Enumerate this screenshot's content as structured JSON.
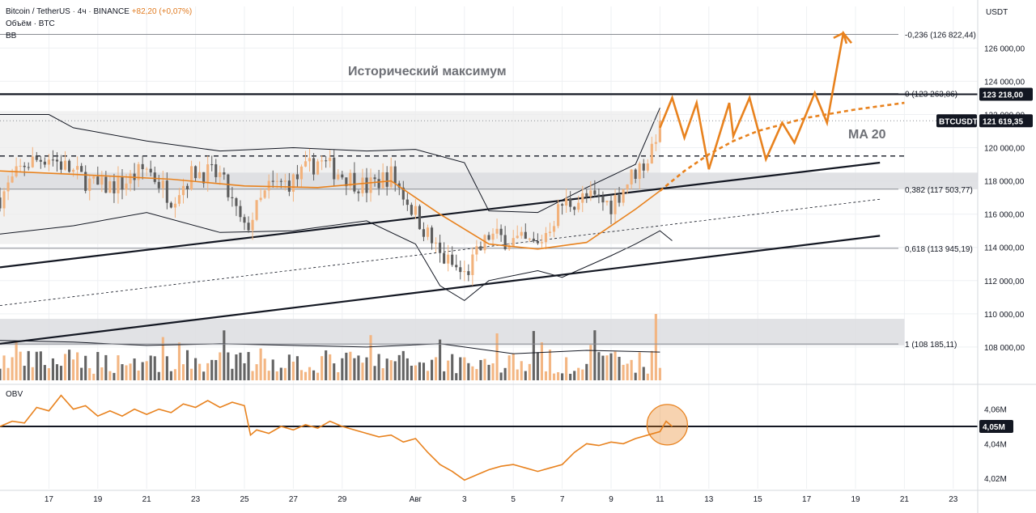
{
  "header": {
    "symbol": "Bitcoin / TetherUS",
    "interval": "4ч",
    "exchange": "BINANCE",
    "change": "+82,20 (+0,07%)",
    "volume_label": "Объём · BTC",
    "bb_label": "BB",
    "currency": "USDT",
    "separator": "·"
  },
  "colors": {
    "bull": "#f2b27c",
    "bear": "#5c5c5c",
    "annotation": "#e8821e",
    "line": "#131722",
    "grid": "#eef0f3",
    "band_fill": "#e6e6e6"
  },
  "chart_data": [
    {
      "type": "candlestick",
      "panel": "price",
      "title": "Bitcoin / TetherUS · 4ч · BINANCE",
      "ylim": [
        106000,
        128500
      ],
      "y_ticks": [
        "126 000,00",
        "124 000,00",
        "122 000,00",
        "120 000,00",
        "118 000,00",
        "116 000,00",
        "114 000,00",
        "112 000,00",
        "110 000,00",
        "108 000,00"
      ],
      "y_tick_values": [
        126000,
        124000,
        122000,
        120000,
        118000,
        116000,
        114000,
        112000,
        110000,
        108000
      ],
      "x_ticks": [
        "17",
        "19",
        "21",
        "23",
        "25",
        "27",
        "29",
        "Авг",
        "3",
        "5",
        "7",
        "9",
        "11",
        "13",
        "15",
        "17",
        "19",
        "21",
        "23"
      ],
      "x_tick_dates": [
        "2025-07-17",
        "2025-07-19",
        "2025-07-21",
        "2025-07-23",
        "2025-07-25",
        "2025-07-27",
        "2025-07-29",
        "2025-08-01",
        "2025-08-03",
        "2025-08-05",
        "2025-08-07",
        "2025-08-09",
        "2025-08-11",
        "2025-08-13",
        "2025-08-15",
        "2025-08-17",
        "2025-08-19",
        "2025-08-21",
        "2025-08-23"
      ],
      "x_start": "2025-07-15",
      "x_end": "2025-08-24",
      "candle_anchors": [
        [
          "2025-07-15",
          117000
        ],
        [
          "2025-07-16",
          119000
        ],
        [
          "2025-07-17",
          119500
        ],
        [
          "2025-07-18",
          118500
        ],
        [
          "2025-07-19",
          117600
        ],
        [
          "2025-07-20",
          117800
        ],
        [
          "2025-07-21",
          118800
        ],
        [
          "2025-07-22",
          117000
        ],
        [
          "2025-07-23",
          118600
        ],
        [
          "2025-07-24",
          118300
        ],
        [
          "2025-07-25",
          115000
        ],
        [
          "2025-07-26",
          117600
        ],
        [
          "2025-07-27",
          118000
        ],
        [
          "2025-07-28",
          119200
        ],
        [
          "2025-07-29",
          118400
        ],
        [
          "2025-07-30",
          117600
        ],
        [
          "2025-07-31",
          118400
        ],
        [
          "2025-08-01",
          116000
        ],
        [
          "2025-08-02",
          113500
        ],
        [
          "2025-08-03",
          112300
        ],
        [
          "2025-08-04",
          114700
        ],
        [
          "2025-08-05",
          114400
        ],
        [
          "2025-08-06",
          114100
        ],
        [
          "2025-08-07",
          116600
        ],
        [
          "2025-08-08",
          117000
        ],
        [
          "2025-08-09",
          116600
        ],
        [
          "2025-08-10",
          118600
        ],
        [
          "2025-08-10T12:00",
          119300
        ],
        [
          "2025-08-11",
          121620
        ]
      ],
      "last_price": 121619.35,
      "last_price_label": "121 619,35",
      "symbol_tag": "BTCUSDT",
      "ath_value": 123218.0,
      "ath_label": "123 218,00",
      "ath_title": "Исторический максимум",
      "ma_label": "MA 20",
      "fib_levels": [
        {
          "label": "-0,236 (126 822,44)",
          "value": 126822.44
        },
        {
          "label": "0 (123 263,86)",
          "value": 123263.86
        },
        {
          "label": "0,382 (117 503,77)",
          "value": 117503.77
        },
        {
          "label": "0,618 (113 945,19)",
          "value": 113945.19
        },
        {
          "label": "1 (108 185,11)",
          "value": 108185.11
        }
      ],
      "dashed_level": 119500,
      "ma20": [
        [
          "2025-07-15",
          118600
        ],
        [
          "2025-07-18",
          118400
        ],
        [
          "2025-07-22",
          118100
        ],
        [
          "2025-07-25",
          117700
        ],
        [
          "2025-07-28",
          117600
        ],
        [
          "2025-07-31",
          118000
        ],
        [
          "2025-08-02",
          116000
        ],
        [
          "2025-08-04",
          114200
        ],
        [
          "2025-08-06",
          113900
        ],
        [
          "2025-08-08",
          114300
        ],
        [
          "2025-08-10",
          116300
        ],
        [
          "2025-08-11",
          117400
        ]
      ],
      "bb_upper": [
        [
          "2025-07-15",
          122000
        ],
        [
          "2025-07-17",
          122000
        ],
        [
          "2025-07-18",
          121200
        ],
        [
          "2025-07-21",
          120400
        ],
        [
          "2025-07-24",
          119800
        ],
        [
          "2025-07-27",
          120000
        ],
        [
          "2025-07-30",
          119800
        ],
        [
          "2025-08-01",
          119900
        ],
        [
          "2025-08-03",
          119100
        ],
        [
          "2025-08-04",
          116200
        ],
        [
          "2025-08-06",
          116100
        ],
        [
          "2025-08-08",
          117600
        ],
        [
          "2025-08-10",
          119000
        ],
        [
          "2025-08-11",
          122400
        ]
      ],
      "bb_lower": [
        [
          "2025-07-15",
          114800
        ],
        [
          "2025-07-18",
          115300
        ],
        [
          "2025-07-21",
          116100
        ],
        [
          "2025-07-24",
          114900
        ],
        [
          "2025-07-27",
          115000
        ],
        [
          "2025-07-30",
          115600
        ],
        [
          "2025-08-01",
          114200
        ],
        [
          "2025-08-02",
          111700
        ],
        [
          "2025-08-03",
          110800
        ],
        [
          "2025-08-04",
          112000
        ],
        [
          "2025-08-06",
          112600
        ],
        [
          "2025-08-07",
          112200
        ],
        [
          "2025-08-09",
          113500
        ],
        [
          "2025-08-10",
          114200
        ],
        [
          "2025-08-11",
          115000
        ],
        [
          "2025-08-11T12:00",
          114400
        ]
      ],
      "grey_zone": {
        "from": "2025-07-15",
        "to": "2025-08-11",
        "y_low": 114200,
        "y_high": 122200
      },
      "resistance_band": {
        "from": "2025-07-15",
        "to": "2025-08-24",
        "y_low": 117500,
        "y_high": 118500
      },
      "volume_zone": {
        "from": "2025-07-15",
        "to": "2025-08-21",
        "y_low": 108100,
        "y_high": 109700
      },
      "channel_upper": [
        [
          "2025-07-15",
          112800
        ],
        [
          "2025-08-20",
          119100
        ]
      ],
      "channel_lower": [
        [
          "2025-07-15",
          108200
        ],
        [
          "2025-08-20",
          114700
        ]
      ],
      "channel_mid": [
        [
          "2025-07-15",
          110500
        ],
        [
          "2025-08-20",
          116900
        ]
      ],
      "projection_zigzag": [
        [
          "2025-08-11",
          121200
        ],
        [
          "2025-08-11T12:00",
          123000
        ],
        [
          "2025-08-12",
          120600
        ],
        [
          "2025-08-12T12:00",
          122700
        ],
        [
          "2025-08-13",
          118700
        ],
        [
          "2025-08-13T20:00",
          122700
        ],
        [
          "2025-08-14",
          120700
        ],
        [
          "2025-08-14T16:00",
          123000
        ],
        [
          "2025-08-15T08:00",
          119300
        ],
        [
          "2025-08-16",
          121500
        ],
        [
          "2025-08-16T12:00",
          120300
        ],
        [
          "2025-08-17T08:00",
          123300
        ],
        [
          "2025-08-17T20:00",
          121500
        ],
        [
          "2025-08-18T12:00",
          126900
        ],
        [
          "2025-08-18T20:00",
          126300
        ]
      ],
      "projection_ma": [
        [
          "2025-08-11",
          117400
        ],
        [
          "2025-08-12",
          118600
        ],
        [
          "2025-08-13",
          119600
        ],
        [
          "2025-08-14",
          120400
        ],
        [
          "2025-08-15",
          121000
        ],
        [
          "2025-08-17",
          121800
        ],
        [
          "2025-08-19",
          122300
        ],
        [
          "2025-08-21",
          122700
        ]
      ],
      "volume_baseline": [
        [
          "2025-07-15",
          108400
        ],
        [
          "2025-07-18",
          108300
        ],
        [
          "2025-07-21",
          108100
        ],
        [
          "2025-07-24",
          108200
        ],
        [
          "2025-07-27",
          108100
        ],
        [
          "2025-07-30",
          108000
        ],
        [
          "2025-08-02",
          108200
        ],
        [
          "2025-08-05",
          107600
        ],
        [
          "2025-08-08",
          107800
        ],
        [
          "2025-08-11",
          107700
        ]
      ]
    },
    {
      "type": "line",
      "panel": "obv",
      "title": "OBV",
      "ylim": [
        4.014,
        4.072
      ],
      "y_ticks": [
        "4,06M",
        "4,04M",
        "4,02M"
      ],
      "y_tick_values": [
        4.06,
        4.04,
        4.02
      ],
      "level": 4.05,
      "level_label": "4,05M",
      "series": [
        {
          "values": [
            [
              "2025-07-15",
              4.05
            ],
            [
              "2025-07-15T12:00",
              4.053
            ],
            [
              "2025-07-16",
              4.052
            ],
            [
              "2025-07-16T12:00",
              4.061
            ],
            [
              "2025-07-17",
              4.059
            ],
            [
              "2025-07-17T12:00",
              4.068
            ],
            [
              "2025-07-18",
              4.06
            ],
            [
              "2025-07-18T12:00",
              4.062
            ],
            [
              "2025-07-19",
              4.056
            ],
            [
              "2025-07-19T12:00",
              4.059
            ],
            [
              "2025-07-20",
              4.056
            ],
            [
              "2025-07-20T12:00",
              4.06
            ],
            [
              "2025-07-21",
              4.057
            ],
            [
              "2025-07-21T12:00",
              4.06
            ],
            [
              "2025-07-22",
              4.058
            ],
            [
              "2025-07-22T12:00",
              4.063
            ],
            [
              "2025-07-23",
              4.061
            ],
            [
              "2025-07-23T12:00",
              4.065
            ],
            [
              "2025-07-24",
              4.061
            ],
            [
              "2025-07-24T12:00",
              4.064
            ],
            [
              "2025-07-25",
              4.062
            ],
            [
              "2025-07-25T06:00",
              4.045
            ],
            [
              "2025-07-25T12:00",
              4.048
            ],
            [
              "2025-07-26",
              4.046
            ],
            [
              "2025-07-26T12:00",
              4.05
            ],
            [
              "2025-07-27",
              4.048
            ],
            [
              "2025-07-27T12:00",
              4.051
            ],
            [
              "2025-07-28",
              4.049
            ],
            [
              "2025-07-28T12:00",
              4.053
            ],
            [
              "2025-07-29",
              4.05
            ],
            [
              "2025-07-30",
              4.046
            ],
            [
              "2025-07-30T12:00",
              4.044
            ],
            [
              "2025-07-31",
              4.045
            ],
            [
              "2025-07-31T12:00",
              4.041
            ],
            [
              "2025-08-01",
              4.043
            ],
            [
              "2025-08-01T12:00",
              4.035
            ],
            [
              "2025-08-02",
              4.028
            ],
            [
              "2025-08-02T12:00",
              4.024
            ],
            [
              "2025-08-03",
              4.019
            ],
            [
              "2025-08-03T12:00",
              4.022
            ],
            [
              "2025-08-04",
              4.025
            ],
            [
              "2025-08-04T12:00",
              4.027
            ],
            [
              "2025-08-05",
              4.028
            ],
            [
              "2025-08-05T12:00",
              4.026
            ],
            [
              "2025-08-06",
              4.024
            ],
            [
              "2025-08-06T12:00",
              4.026
            ],
            [
              "2025-08-07",
              4.028
            ],
            [
              "2025-08-07T12:00",
              4.035
            ],
            [
              "2025-08-08",
              4.04
            ],
            [
              "2025-08-08T12:00",
              4.039
            ],
            [
              "2025-08-09",
              4.041
            ],
            [
              "2025-08-09T12:00",
              4.04
            ],
            [
              "2025-08-10",
              4.043
            ],
            [
              "2025-08-10T12:00",
              4.045
            ],
            [
              "2025-08-11",
              4.047
            ],
            [
              "2025-08-11T06:00",
              4.053
            ],
            [
              "2025-08-11T12:00",
              4.05
            ]
          ]
        }
      ],
      "highlight_circle_at": "2025-08-11"
    }
  ]
}
